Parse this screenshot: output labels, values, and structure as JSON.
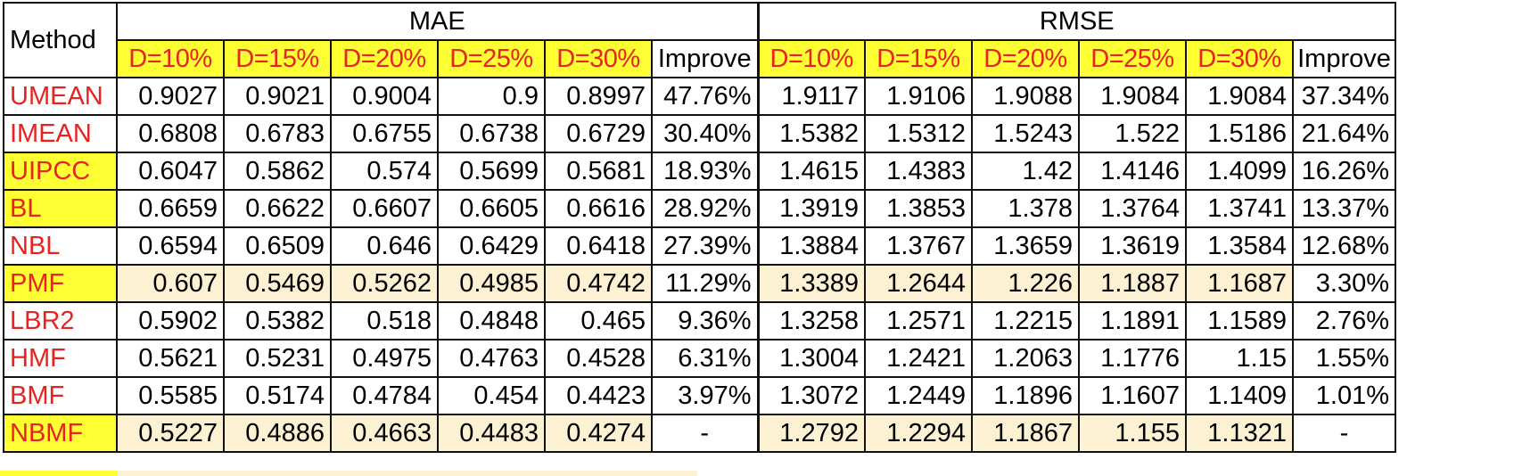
{
  "header": {
    "method": "Method",
    "mae": "MAE",
    "rmse": "RMSE",
    "densities": [
      "D=10%",
      "D=15%",
      "D=20%",
      "D=25%",
      "D=30%"
    ],
    "improve": "Improve"
  },
  "rows": [
    {
      "name": "UMEAN",
      "mae": [
        "0.9027",
        "0.9021",
        "0.9004",
        "0.9",
        "0.8997"
      ],
      "mae_imp": "47.76%",
      "rmse": [
        "1.9117",
        "1.9106",
        "1.9088",
        "1.9084",
        "1.9084"
      ],
      "rmse_imp": "37.34%"
    },
    {
      "name": "IMEAN",
      "mae": [
        "0.6808",
        "0.6783",
        "0.6755",
        "0.6738",
        "0.6729"
      ],
      "mae_imp": "30.40%",
      "rmse": [
        "1.5382",
        "1.5312",
        "1.5243",
        "1.522",
        "1.5186"
      ],
      "rmse_imp": "21.64%"
    },
    {
      "name": "UIPCC",
      "mae": [
        "0.6047",
        "0.5862",
        "0.574",
        "0.5699",
        "0.5681"
      ],
      "mae_imp": "18.93%",
      "rmse": [
        "1.4615",
        "1.4383",
        "1.42",
        "1.4146",
        "1.4099"
      ],
      "rmse_imp": "16.26%"
    },
    {
      "name": "BL",
      "mae": [
        "0.6659",
        "0.6622",
        "0.6607",
        "0.6605",
        "0.6616"
      ],
      "mae_imp": "28.92%",
      "rmse": [
        "1.3919",
        "1.3853",
        "1.378",
        "1.3764",
        "1.3741"
      ],
      "rmse_imp": "13.37%"
    },
    {
      "name": "NBL",
      "mae": [
        "0.6594",
        "0.6509",
        "0.646",
        "0.6429",
        "0.6418"
      ],
      "mae_imp": "27.39%",
      "rmse": [
        "1.3884",
        "1.3767",
        "1.3659",
        "1.3619",
        "1.3584"
      ],
      "rmse_imp": "12.68%"
    },
    {
      "name": "PMF",
      "mae": [
        "0.607",
        "0.5469",
        "0.5262",
        "0.4985",
        "0.4742"
      ],
      "mae_imp": "11.29%",
      "rmse": [
        "1.3389",
        "1.2644",
        "1.226",
        "1.1887",
        "1.1687"
      ],
      "rmse_imp": "3.30%"
    },
    {
      "name": "LBR2",
      "mae": [
        "0.5902",
        "0.5382",
        "0.518",
        "0.4848",
        "0.465"
      ],
      "mae_imp": "9.36%",
      "rmse": [
        "1.3258",
        "1.2571",
        "1.2215",
        "1.1891",
        "1.1589"
      ],
      "rmse_imp": "2.76%"
    },
    {
      "name": "HMF",
      "mae": [
        "0.5621",
        "0.5231",
        "0.4975",
        "0.4763",
        "0.4528"
      ],
      "mae_imp": "6.31%",
      "rmse": [
        "1.3004",
        "1.2421",
        "1.2063",
        "1.1776",
        "1.15"
      ],
      "rmse_imp": "1.55%"
    },
    {
      "name": "BMF",
      "mae": [
        "0.5585",
        "0.5174",
        "0.4784",
        "0.454",
        "0.4423"
      ],
      "mae_imp": "3.97%",
      "rmse": [
        "1.3072",
        "1.2449",
        "1.1896",
        "1.1607",
        "1.1409"
      ],
      "rmse_imp": "1.01%"
    },
    {
      "name": "NBMF",
      "mae": [
        "0.5227",
        "0.4886",
        "0.4663",
        "0.4483",
        "0.4274"
      ],
      "mae_imp": "-",
      "rmse": [
        "1.2792",
        "1.2294",
        "1.1867",
        "1.155",
        "1.1321"
      ],
      "rmse_imp": "-"
    }
  ],
  "colors": {
    "density_header_bg": "#ffff33",
    "density_header_text": "#e8221e",
    "method_name_text": "#e8221e",
    "highlight_row_bg": "#fdf1d3"
  }
}
